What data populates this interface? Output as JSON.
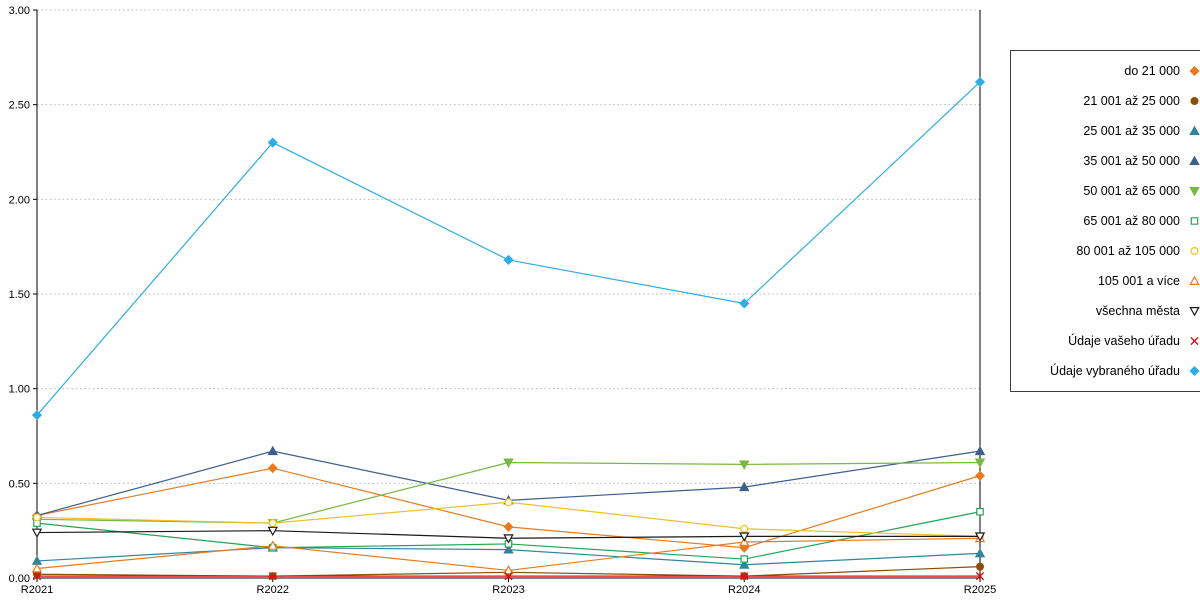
{
  "chart_data": {
    "type": "line",
    "categories": [
      "R2021",
      "R2022",
      "R2023",
      "R2024",
      "R2025"
    ],
    "ylim": [
      0,
      3.0
    ],
    "ytick_step": 0.5,
    "y_tick_labels": [
      "0.00",
      "0.50",
      "1.00",
      "1.50",
      "2.00",
      "2.50",
      "3.00"
    ],
    "grid": "horizontal-dotted",
    "legend_position": "right",
    "title": "",
    "xlabel": "",
    "ylabel": "",
    "series": [
      {
        "name": "do 21 000",
        "color": "#E87B1E",
        "marker": "diamond",
        "filled": true,
        "values": [
          0.33,
          0.58,
          0.27,
          0.16,
          0.54
        ]
      },
      {
        "name": "21 001 až 25 000",
        "color": "#8B4D0A",
        "marker": "circle",
        "filled": true,
        "values": [
          0.02,
          0.01,
          0.03,
          0.01,
          0.06
        ]
      },
      {
        "name": "25 001 až 35 000",
        "color": "#31859C",
        "marker": "triangle-up",
        "filled": true,
        "values": [
          0.09,
          0.16,
          0.15,
          0.07,
          0.13
        ]
      },
      {
        "name": "35 001 až 50 000",
        "color": "#3E5E8C",
        "marker": "triangle-up",
        "filled": true,
        "values": [
          0.33,
          0.67,
          0.41,
          0.48,
          0.67
        ]
      },
      {
        "name": "50 001 až 65 000",
        "color": "#76B943",
        "marker": "triangle-down",
        "filled": true,
        "values": [
          0.31,
          0.29,
          0.61,
          0.6,
          0.61
        ]
      },
      {
        "name": "65 001 až 80 000",
        "color": "#23A455",
        "marker": "square",
        "filled": false,
        "values": [
          0.29,
          0.16,
          0.18,
          0.1,
          0.35
        ]
      },
      {
        "name": "80 001 až 105 000",
        "color": "#F0C020",
        "marker": "circle",
        "filled": false,
        "values": [
          0.32,
          0.29,
          0.4,
          0.26,
          0.22
        ]
      },
      {
        "name": "105 001 a více",
        "color": "#E87B1E",
        "marker": "triangle-up",
        "filled": false,
        "values": [
          0.05,
          0.17,
          0.04,
          0.19,
          0.21
        ]
      },
      {
        "name": "všechna města",
        "color": "#1A1A1A",
        "marker": "triangle-down",
        "filled": false,
        "values": [
          0.24,
          0.25,
          0.21,
          0.22,
          0.22
        ]
      },
      {
        "name": "Údaje vašeho úřadu",
        "color": "#DD1111",
        "marker": "x",
        "filled": false,
        "values": [
          0.01,
          0.01,
          0.01,
          0.01,
          0.01
        ]
      },
      {
        "name": "Údaje vybraného úřadu",
        "color": "#2FADE3",
        "marker": "diamond",
        "filled": true,
        "values": [
          0.86,
          2.3,
          1.68,
          1.45,
          2.62
        ]
      }
    ]
  }
}
